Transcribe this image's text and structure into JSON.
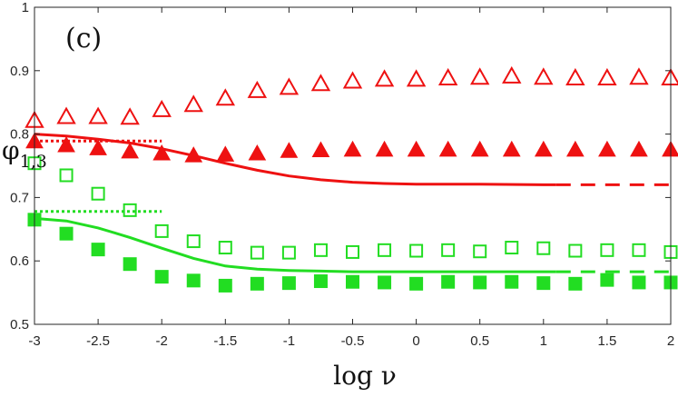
{
  "chart_data": {
    "type": "scatter",
    "panel_label": "(c)",
    "xlabel": "log ν",
    "ylabel": "φ",
    "ylabel_sub": "1,3",
    "xlim": [
      -3,
      2
    ],
    "ylim": [
      0.5,
      1
    ],
    "xticks": [
      -3,
      -2.5,
      -2,
      -1.5,
      -1,
      -0.5,
      0,
      0.5,
      1,
      1.5,
      2
    ],
    "xtick_labels": [
      "-3",
      "-2.5",
      "-2",
      "-1.5",
      "-1",
      "-0.5",
      "0",
      "0.5",
      "1",
      "1.5",
      "2"
    ],
    "yticks": [
      0.5,
      0.6,
      0.7,
      0.8,
      0.9,
      1
    ],
    "ytick_labels": [
      "0.5",
      "0.6",
      "0.7",
      "0.8",
      "0.9",
      "1"
    ],
    "x": [
      -3,
      -2.75,
      -2.5,
      -2.25,
      -2,
      -1.75,
      -1.5,
      -1.25,
      -1,
      -0.75,
      -0.5,
      -0.25,
      0,
      0.25,
      0.5,
      0.75,
      1,
      1.25,
      1.5,
      1.75,
      2
    ],
    "series": [
      {
        "name": "open-triangles",
        "marker": "triangle",
        "filled": false,
        "color": "#ee1111",
        "values": [
          0.82,
          0.826,
          0.826,
          0.825,
          0.837,
          0.845,
          0.855,
          0.867,
          0.872,
          0.878,
          0.882,
          0.885,
          0.885,
          0.887,
          0.888,
          0.89,
          0.888,
          0.887,
          0.887,
          0.888,
          0.887
        ]
      },
      {
        "name": "filled-triangles",
        "marker": "triangle",
        "filled": true,
        "color": "#ee1111",
        "values": [
          0.787,
          0.781,
          0.776,
          0.771,
          0.768,
          0.765,
          0.766,
          0.768,
          0.772,
          0.773,
          0.774,
          0.774,
          0.774,
          0.774,
          0.774,
          0.774,
          0.774,
          0.774,
          0.774,
          0.774,
          0.774
        ]
      },
      {
        "name": "open-squares",
        "marker": "square",
        "filled": false,
        "color": "#22dd22",
        "values": [
          0.754,
          0.735,
          0.706,
          0.68,
          0.647,
          0.631,
          0.621,
          0.613,
          0.613,
          0.617,
          0.614,
          0.617,
          0.616,
          0.617,
          0.615,
          0.621,
          0.62,
          0.616,
          0.617,
          0.617,
          0.614
        ]
      },
      {
        "name": "filled-squares",
        "marker": "square",
        "filled": true,
        "color": "#22dd22",
        "values": [
          0.665,
          0.643,
          0.618,
          0.595,
          0.575,
          0.569,
          0.561,
          0.564,
          0.565,
          0.568,
          0.567,
          0.566,
          0.564,
          0.567,
          0.566,
          0.567,
          0.565,
          0.564,
          0.57,
          0.566,
          0.566
        ]
      }
    ],
    "lines": [
      {
        "name": "red-solid-curve",
        "style": "solid",
        "color": "#ee1111",
        "x": [
          -3,
          -2.75,
          -2.5,
          -2.25,
          -2,
          -1.75,
          -1.5,
          -1.25,
          -1,
          -0.75,
          -0.5,
          -0.25,
          0,
          0.5,
          1,
          1.1
        ],
        "y": [
          0.8,
          0.797,
          0.792,
          0.786,
          0.777,
          0.766,
          0.754,
          0.743,
          0.734,
          0.728,
          0.724,
          0.722,
          0.721,
          0.721,
          0.72,
          0.72
        ]
      },
      {
        "name": "red-dashed-tail",
        "style": "dashed",
        "color": "#ee1111",
        "x": [
          1.1,
          2
        ],
        "y": [
          0.72,
          0.72
        ]
      },
      {
        "name": "red-dotted-ref",
        "style": "dotted",
        "color": "#ee1111",
        "x": [
          -3,
          -2
        ],
        "y": [
          0.789,
          0.789
        ]
      },
      {
        "name": "green-solid-curve",
        "style": "solid",
        "color": "#22dd22",
        "x": [
          -3,
          -2.75,
          -2.5,
          -2.25,
          -2,
          -1.75,
          -1.5,
          -1.25,
          -1,
          -0.75,
          -0.5,
          -0.25,
          0,
          0.5,
          1,
          1.1
        ],
        "y": [
          0.667,
          0.663,
          0.652,
          0.637,
          0.62,
          0.604,
          0.592,
          0.587,
          0.585,
          0.584,
          0.583,
          0.583,
          0.583,
          0.583,
          0.583,
          0.583
        ]
      },
      {
        "name": "green-dashed-tail",
        "style": "dashed",
        "color": "#22dd22",
        "x": [
          1.1,
          2
        ],
        "y": [
          0.583,
          0.583
        ]
      },
      {
        "name": "green-dotted-ref",
        "style": "dotted",
        "color": "#22dd22",
        "x": [
          -3,
          -2
        ],
        "y": [
          0.678,
          0.678
        ]
      }
    ]
  }
}
